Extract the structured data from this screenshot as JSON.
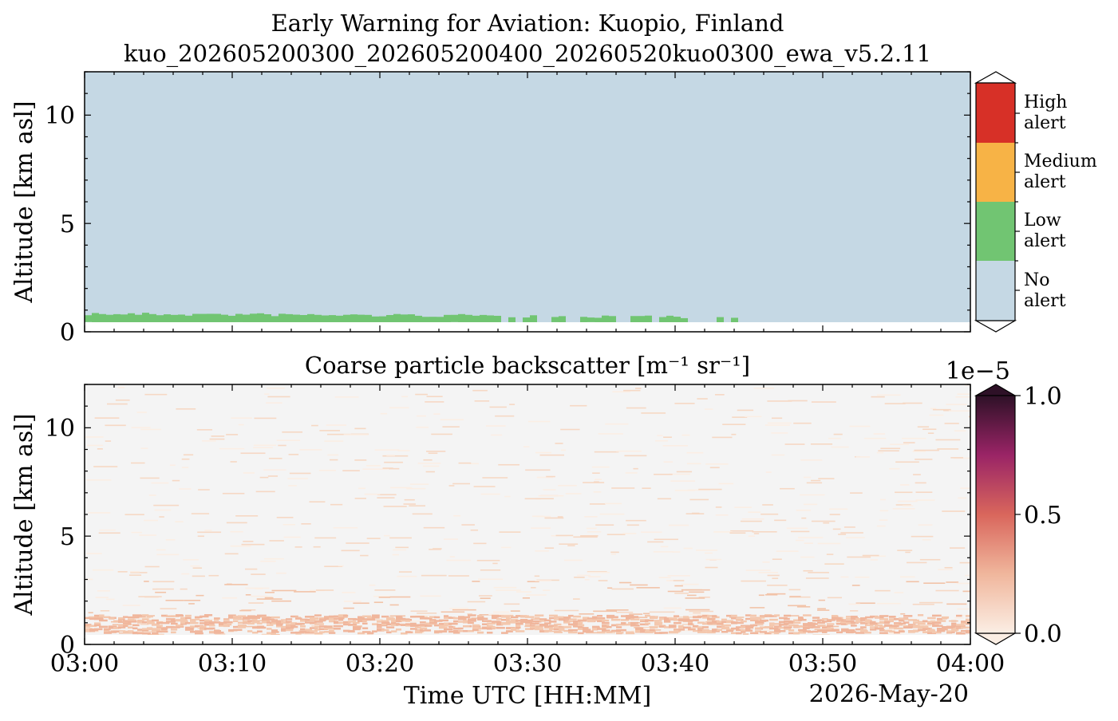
{
  "chart_data": [
    {
      "type": "heatmap",
      "title": "Early Warning for Aviation: Kuopio, Finland",
      "subtitle": "kuo_202605200300_202605200400_20260520kuo0300_ewa_v5.2.11",
      "ylabel": "Altitude [km asl]",
      "ylim": [
        0,
        12
      ],
      "yticks": [
        "0",
        "5",
        "10"
      ],
      "xlim": [
        "03:00",
        "04:00"
      ],
      "colorbar": {
        "categories": [
          {
            "label": "High\nalert",
            "line1": "High",
            "line2": "alert",
            "color": "#d73027"
          },
          {
            "label": "Medium\nalert",
            "line1": "Medium",
            "line2": "alert",
            "color": "#f7b346"
          },
          {
            "label": "Low\nalert",
            "line1": "Low",
            "line2": "alert",
            "color": "#71c572"
          },
          {
            "label": "No\nalert",
            "line1": "No",
            "line2": "alert",
            "color": "#c5d8e4"
          }
        ]
      },
      "low_alert_layer_km": [
        0.45,
        0.9
      ],
      "low_alert_until": "03:45",
      "background_color": "#c5d8e4"
    },
    {
      "type": "heatmap",
      "title": "Coarse particle backscatter [m⁻¹ sr⁻¹]",
      "ylabel": "Altitude [km asl]",
      "xlabel": "Time UTC [HH:MM]",
      "date": "2026-May-20",
      "ylim": [
        0,
        12
      ],
      "yticks": [
        "0",
        "5",
        "10"
      ],
      "xticks": [
        "03:00",
        "03:10",
        "03:20",
        "03:30",
        "03:40",
        "03:50",
        "04:00"
      ],
      "colorbar": {
        "min": 0.0,
        "max": 1.0,
        "scale_label": "1e−5",
        "ticks": [
          "0.0",
          "0.5",
          "1.0"
        ],
        "colors": [
          "#fbeee4",
          "#f0b69c",
          "#d9665c",
          "#9a2466",
          "#2e1127"
        ]
      },
      "aerosol_layer_km": [
        0.55,
        1.0
      ],
      "background_color": "#f4f4f4"
    }
  ]
}
